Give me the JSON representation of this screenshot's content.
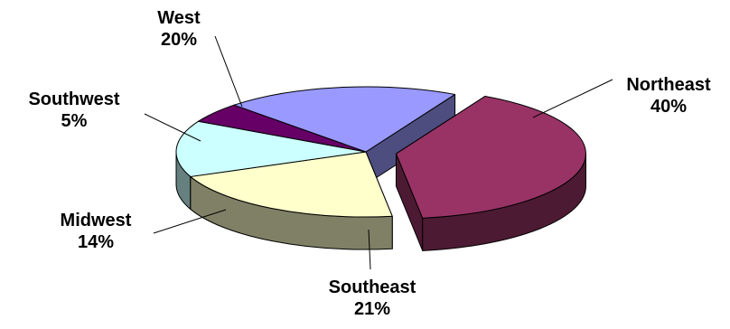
{
  "chart_data": {
    "type": "pie",
    "title": "",
    "three_d": true,
    "exploded_slice": "Northeast",
    "slices": [
      {
        "label": "Northeast",
        "value": 40,
        "value_label": "40%",
        "color": "#993366",
        "side_color": "#4d1a33"
      },
      {
        "label": "Southeast",
        "value": 21,
        "value_label": "21%",
        "color": "#ffffcc",
        "side_color": "#808066"
      },
      {
        "label": "Midwest",
        "value": 14,
        "value_label": "14%",
        "color": "#ccffff",
        "side_color": "#668080"
      },
      {
        "label": "Southwest",
        "value": 5,
        "value_label": "5%",
        "color": "#660066",
        "side_color": "#330033"
      },
      {
        "label": "West",
        "value": 20,
        "value_label": "20%",
        "color": "#9999ff",
        "side_color": "#4d4d80"
      }
    ]
  }
}
